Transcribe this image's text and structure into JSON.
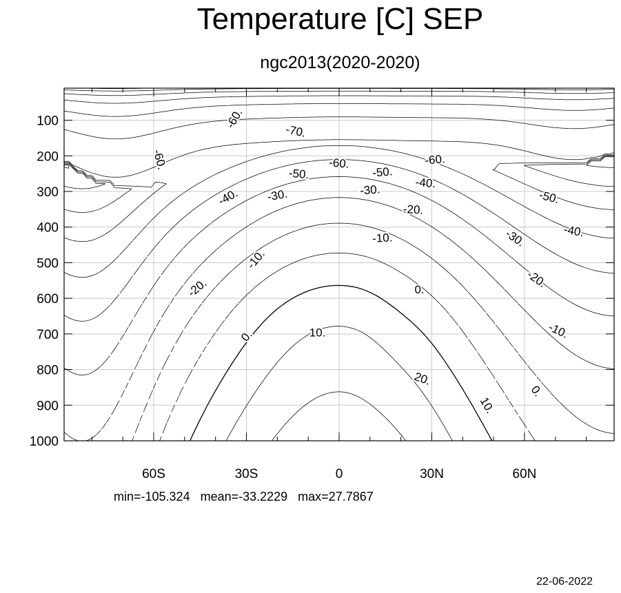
{
  "chart_data": {
    "type": "contour",
    "title": "Temperature [C] SEP",
    "subtitle": "ngc2013(2020-2020)",
    "x_tick_labels": [
      "60S",
      "30S",
      "0",
      "30N",
      "60N"
    ],
    "x_ticks": [
      -60,
      -30,
      0,
      30,
      60
    ],
    "xlim": [
      -89,
      89
    ],
    "y_tick_labels": [
      "100",
      "200",
      "300",
      "400",
      "500",
      "600",
      "700",
      "800",
      "900",
      "1000"
    ],
    "y_ticks": [
      100,
      200,
      300,
      400,
      500,
      600,
      700,
      800,
      900,
      1000
    ],
    "ylim": [
      10,
      1000
    ],
    "y_reversed": true,
    "grid": true,
    "negative_contours": "dashed",
    "contour_interval": 10,
    "contour_labels": [
      {
        "text": "-60.",
        "x": -34,
        "y": 95,
        "rot": -60
      },
      {
        "text": "-70.",
        "x": -14,
        "y": 130,
        "rot": 12
      },
      {
        "text": "-60.",
        "x": -58,
        "y": 210,
        "rot": 75
      },
      {
        "text": "-60.",
        "x": 0,
        "y": 220,
        "rot": 5
      },
      {
        "text": "-60.",
        "x": 31,
        "y": 210,
        "rot": -5
      },
      {
        "text": "-50.",
        "x": -13,
        "y": 250,
        "rot": 5
      },
      {
        "text": "-50.",
        "x": 14,
        "y": 245,
        "rot": -5
      },
      {
        "text": "-40.",
        "x": 28,
        "y": 275,
        "rot": 5
      },
      {
        "text": "-50.",
        "x": 68,
        "y": 315,
        "rot": 15
      },
      {
        "text": "-40.",
        "x": -36,
        "y": 315,
        "rot": -30
      },
      {
        "text": "-30.",
        "x": -20,
        "y": 310,
        "rot": -10
      },
      {
        "text": "-30.",
        "x": 10,
        "y": 295,
        "rot": -5
      },
      {
        "text": "-20.",
        "x": 24,
        "y": 350,
        "rot": 3
      },
      {
        "text": "-40.",
        "x": 76,
        "y": 410,
        "rot": 10
      },
      {
        "text": "-30.",
        "x": 57,
        "y": 430,
        "rot": 35
      },
      {
        "text": "-10.",
        "x": 14,
        "y": 430,
        "rot": -3
      },
      {
        "text": "-10.",
        "x": -27,
        "y": 490,
        "rot": -50
      },
      {
        "text": "-20.",
        "x": 64,
        "y": 545,
        "rot": 35
      },
      {
        "text": "-20.",
        "x": -46,
        "y": 570,
        "rot": -40
      },
      {
        "text": "0.",
        "x": 26,
        "y": 575,
        "rot": 0
      },
      {
        "text": "0.",
        "x": -30,
        "y": 705,
        "rot": -50
      },
      {
        "text": "10.",
        "x": -7,
        "y": 695,
        "rot": 0
      },
      {
        "text": "-10.",
        "x": 71,
        "y": 690,
        "rot": 25
      },
      {
        "text": "20.",
        "x": 27,
        "y": 825,
        "rot": 20
      },
      {
        "text": "0.",
        "x": 64,
        "y": 860,
        "rot": 55
      },
      {
        "text": "10.",
        "x": 48,
        "y": 900,
        "rot": 60
      }
    ]
  },
  "footer": {
    "stats": "min=-105.324   mean=-33.2229   max=27.7867",
    "date": "22-06-2022"
  }
}
